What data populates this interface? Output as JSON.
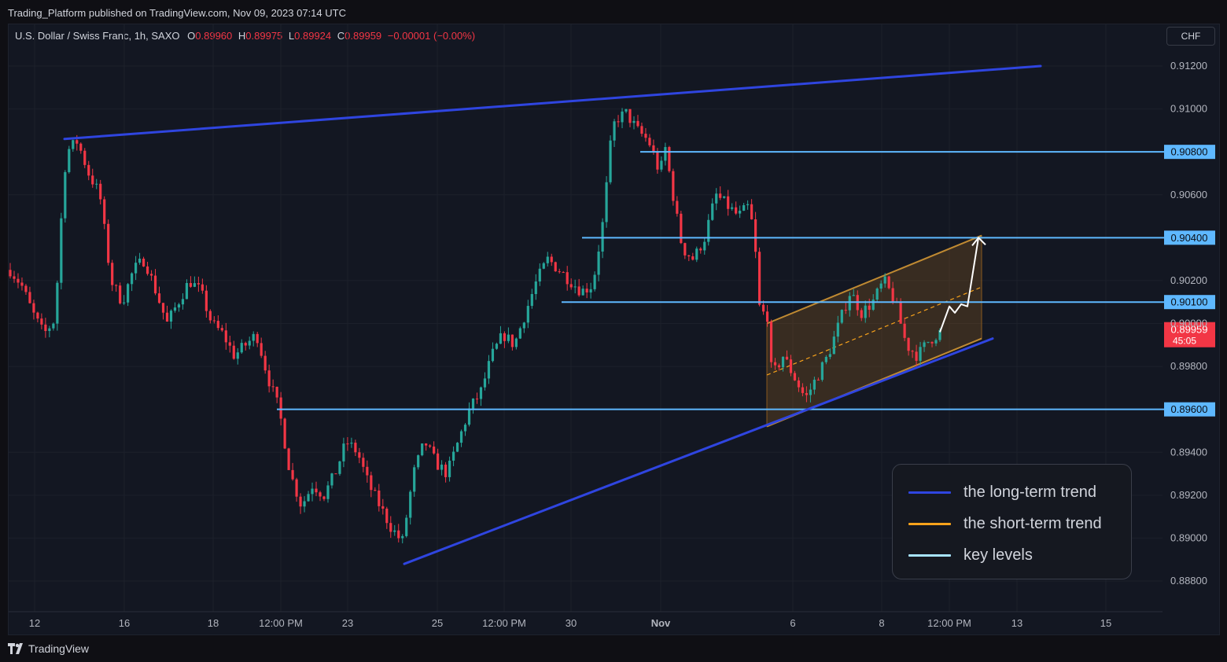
{
  "header": {
    "publish_text": "Trading_Platform published on TradingView.com, Nov 09, 2023 07:14 UTC"
  },
  "symbol": {
    "name": "U.S. Dollar / Swiss Franc, 1h, SAXO",
    "open_label": "O",
    "open": "0.89960",
    "high_label": "H",
    "high": "0.89975",
    "low_label": "L",
    "low": "0.89924",
    "close_label": "C",
    "close": "0.89959",
    "change": "−0.00001 (−0.00%)"
  },
  "currency": "CHF",
  "footer": {
    "logo_text": "TradingView"
  },
  "colors": {
    "up": "#26a69a",
    "down": "#f23645",
    "long_trend": "#2f45e0",
    "short_trend": "#f7a21b",
    "key_level": "#5eb8ff",
    "channel_fill": "#8a5a1f"
  },
  "chart_data": {
    "type": "candlestick",
    "ylim": [
      0.8875,
      0.9125
    ],
    "y_ticks": [
      "0.91200",
      "0.91000",
      "0.90600",
      "0.90200",
      "0.90000",
      "0.89800",
      "0.89400",
      "0.89200",
      "0.89000",
      "0.88800"
    ],
    "x_ticks": [
      "12",
      "16",
      "18",
      "12:00 PM",
      "23",
      "25",
      "12:00 PM",
      "30",
      "Nov",
      "6",
      "8",
      "12:00 PM",
      "13",
      "15"
    ],
    "key_levels": [
      "0.90800",
      "0.90400",
      "0.90100",
      "0.89600"
    ],
    "current_price": "0.89959",
    "countdown": "45:05",
    "price_path": [
      [
        0,
        0.9025
      ],
      [
        2,
        0.9018
      ],
      [
        4,
        0.9005
      ],
      [
        6,
        0.8995
      ],
      [
        8,
        0.9002
      ],
      [
        9,
        0.9045
      ],
      [
        10,
        0.908
      ],
      [
        12,
        0.9085
      ],
      [
        14,
        0.907
      ],
      [
        16,
        0.906
      ],
      [
        17,
        0.904
      ],
      [
        18,
        0.902
      ],
      [
        20,
        0.901
      ],
      [
        22,
        0.9025
      ],
      [
        24,
        0.903
      ],
      [
        26,
        0.9015
      ],
      [
        28,
        0.9
      ],
      [
        30,
        0.901
      ],
      [
        32,
        0.902
      ],
      [
        34,
        0.9015
      ],
      [
        36,
        0.9
      ],
      [
        38,
        0.8995
      ],
      [
        40,
        0.8985
      ],
      [
        42,
        0.899
      ],
      [
        44,
        0.8995
      ],
      [
        46,
        0.8975
      ],
      [
        48,
        0.896
      ],
      [
        50,
        0.893
      ],
      [
        52,
        0.8915
      ],
      [
        54,
        0.8925
      ],
      [
        56,
        0.892
      ],
      [
        58,
        0.893
      ],
      [
        60,
        0.8945
      ],
      [
        62,
        0.894
      ],
      [
        64,
        0.8925
      ],
      [
        66,
        0.8915
      ],
      [
        68,
        0.8905
      ],
      [
        70,
        0.8898
      ],
      [
        72,
        0.893
      ],
      [
        74,
        0.8945
      ],
      [
        76,
        0.8935
      ],
      [
        78,
        0.893
      ],
      [
        80,
        0.8945
      ],
      [
        82,
        0.896
      ],
      [
        84,
        0.8968
      ],
      [
        86,
        0.8985
      ],
      [
        88,
        0.8995
      ],
      [
        90,
        0.899
      ],
      [
        92,
        0.9005
      ],
      [
        94,
        0.902
      ],
      [
        96,
        0.903
      ],
      [
        98,
        0.9025
      ],
      [
        100,
        0.902
      ],
      [
        102,
        0.9015
      ],
      [
        104,
        0.9018
      ],
      [
        106,
        0.905
      ],
      [
        107,
        0.908
      ],
      [
        108,
        0.9095
      ],
      [
        110,
        0.9098
      ],
      [
        112,
        0.909
      ],
      [
        114,
        0.9085
      ],
      [
        116,
        0.907
      ],
      [
        117,
        0.9082
      ],
      [
        118,
        0.9065
      ],
      [
        120,
        0.9035
      ],
      [
        122,
        0.903
      ],
      [
        124,
        0.904
      ],
      [
        126,
        0.906
      ],
      [
        128,
        0.9055
      ],
      [
        130,
        0.905
      ],
      [
        132,
        0.9055
      ],
      [
        133,
        0.9035
      ],
      [
        134,
        0.9
      ],
      [
        135,
        0.901
      ],
      [
        136,
        0.8975
      ],
      [
        138,
        0.8985
      ],
      [
        140,
        0.8975
      ],
      [
        142,
        0.8965
      ],
      [
        144,
        0.8975
      ],
      [
        146,
        0.8985
      ],
      [
        148,
        0.9
      ],
      [
        150,
        0.9015
      ],
      [
        152,
        0.9005
      ],
      [
        154,
        0.901
      ],
      [
        156,
        0.902
      ],
      [
        158,
        0.901
      ],
      [
        160,
        0.899
      ],
      [
        162,
        0.8985
      ],
      [
        164,
        0.8992
      ],
      [
        166,
        0.8996
      ]
    ],
    "long_term_trend": [
      {
        "from": [
          82,
          0.9086
        ],
        "to": [
          1323,
          0.912
        ]
      },
      {
        "from": [
          514,
          0.8888
        ],
        "to": [
          1262,
          0.8993
        ]
      }
    ],
    "short_term_channel": {
      "upper": {
        "from": [
          975,
          0.9
        ],
        "to": [
          1248,
          0.9041
        ]
      },
      "lower": {
        "from": [
          975,
          0.8952
        ],
        "to": [
          1248,
          0.8993
        ]
      },
      "mid": {
        "from": [
          975,
          0.8976
        ],
        "to": [
          1248,
          0.9017
        ]
      }
    },
    "projection_path": [
      [
        1195,
        0.8996
      ],
      [
        1207,
        0.9008
      ],
      [
        1214,
        0.9005
      ],
      [
        1222,
        0.9009
      ],
      [
        1230,
        0.9008
      ],
      [
        1244,
        0.904
      ]
    ],
    "legend": [
      {
        "label": "the long-term trend",
        "color": "#2f45e0"
      },
      {
        "label": "the short-term trend",
        "color": "#f7a21b"
      },
      {
        "label": "key levels",
        "color": "#a8e4ff"
      }
    ]
  }
}
